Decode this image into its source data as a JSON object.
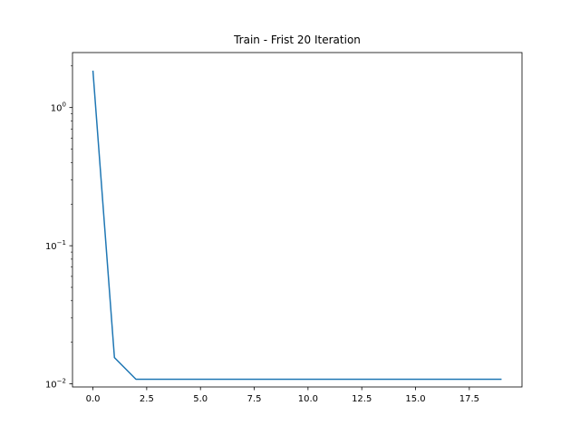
{
  "chart_data": {
    "type": "line",
    "title": "Train - Frist 20 Iteration",
    "xlabel": "",
    "ylabel": "",
    "y_scale": "log",
    "grid": false,
    "x_range": [
      -0.95,
      19.95
    ],
    "y_range": [
      0.0095,
      2.5
    ],
    "x_ticks": [
      0,
      2.5,
      5,
      7.5,
      10,
      12.5,
      15,
      17.5
    ],
    "x_tick_labels": [
      "0.0",
      "2.5",
      "5.0",
      "7.5",
      "10.0",
      "12.5",
      "15.0",
      "17.5"
    ],
    "y_ticks": [
      0.01,
      0.1,
      1
    ],
    "y_tick_labels": [
      {
        "base": "10",
        "exp": "−2"
      },
      {
        "base": "10",
        "exp": "−1"
      },
      {
        "base": "10",
        "exp": "0"
      }
    ],
    "line_color": "#1f77b4",
    "series": [
      {
        "x": [
          0,
          1,
          2,
          3,
          4,
          5,
          6,
          7,
          8,
          9,
          10,
          11,
          12,
          13,
          14,
          15,
          16,
          17,
          18,
          19
        ],
        "y": [
          1.85,
          0.0155,
          0.0108,
          0.0108,
          0.0108,
          0.0108,
          0.0108,
          0.0108,
          0.0108,
          0.0108,
          0.0108,
          0.0108,
          0.0108,
          0.0108,
          0.0108,
          0.0108,
          0.0108,
          0.0108,
          0.0108,
          0.0108
        ]
      }
    ]
  }
}
